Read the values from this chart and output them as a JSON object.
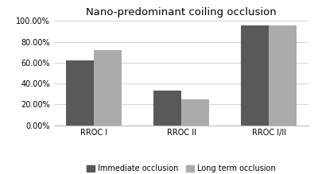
{
  "title": "Nano-predominant coiling occlusion",
  "categories": [
    "RROC I",
    "RROC II",
    "RROC I/II"
  ],
  "immediate_occlusion": [
    0.62,
    0.335,
    0.955
  ],
  "long_term_occlusion": [
    0.72,
    0.245,
    0.955
  ],
  "immediate_color": "#595959",
  "long_term_color": "#ABABAB",
  "ylim": [
    0,
    1.0
  ],
  "yticks": [
    0.0,
    0.2,
    0.4,
    0.6,
    0.8,
    1.0
  ],
  "ytick_labels": [
    "0.00%",
    "20.00%",
    "40.00%",
    "60.00%",
    "80.00%",
    "100.00%"
  ],
  "legend_immediate": "Immediate occlusion",
  "legend_long_term": "Long term occlusion",
  "bar_width": 0.32,
  "background_color": "#ffffff",
  "title_fontsize": 9.5,
  "axis_fontsize": 7,
  "legend_fontsize": 7
}
